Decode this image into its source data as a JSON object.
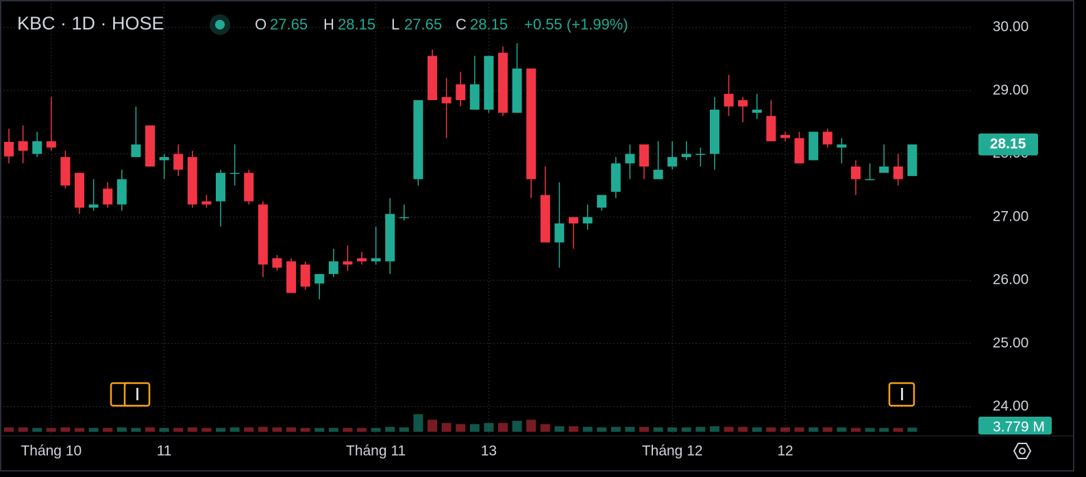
{
  "chart_data": {
    "type": "candlestick",
    "title": "KBC · 1D · HOSE",
    "ohlc_labels": [
      "O",
      "H",
      "L",
      "C"
    ],
    "change_label": "+0.55 (+1.99%)",
    "volume_label": "3.779 M",
    "up_color": "#22ab94",
    "down_color": "#f23645",
    "grid": true,
    "categories": [
      null,
      null,
      null,
      "Tháng 10",
      null,
      null,
      null,
      null,
      null,
      null,
      null,
      "11",
      null,
      null,
      null,
      null,
      null,
      null,
      null,
      null,
      null,
      null,
      null,
      null,
      null,
      null,
      "Tháng 11",
      null,
      null,
      null,
      null,
      null,
      null,
      null,
      "13",
      null,
      null,
      null,
      null,
      null,
      null,
      null,
      null,
      null,
      null,
      null,
      null,
      "Tháng 12",
      null,
      null,
      null,
      null,
      null,
      null,
      null,
      "12",
      null,
      null,
      null,
      null,
      null,
      null,
      null,
      null,
      null
    ],
    "open": [
      28.19,
      28.2,
      28.0,
      28.2,
      27.95,
      27.7,
      27.15,
      27.45,
      27.2,
      27.95,
      28.45,
      27.9,
      28.0,
      27.95,
      27.25,
      27.25,
      27.7,
      27.7,
      27.2,
      26.35,
      26.3,
      26.25,
      25.95,
      26.1,
      26.3,
      26.35,
      26.3,
      26.3,
      27.0,
      27.6,
      29.55,
      28.9,
      29.1,
      28.7,
      28.7,
      29.6,
      28.65,
      29.35,
      27.35,
      26.6,
      27.0,
      26.9,
      27.15,
      27.4,
      27.85,
      28.15,
      27.6,
      27.8,
      27.95,
      28.0,
      28.0,
      28.95,
      28.85,
      28.65,
      28.6,
      28.3,
      28.25,
      27.9,
      28.35,
      28.1,
      27.8,
      27.6,
      27.7,
      27.8,
      27.65
    ],
    "high": [
      28.4,
      28.45,
      28.35,
      28.9,
      28.05,
      27.7,
      27.6,
      27.55,
      27.75,
      28.75,
      28.45,
      28.0,
      28.15,
      28.05,
      27.35,
      27.75,
      28.15,
      27.75,
      27.25,
      26.4,
      26.35,
      26.3,
      26.1,
      26.5,
      26.55,
      26.45,
      26.85,
      27.3,
      27.2,
      28.85,
      29.65,
      29.2,
      29.3,
      29.55,
      29.55,
      29.7,
      29.75,
      29.35,
      27.8,
      27.55,
      27.0,
      27.2,
      27.35,
      27.95,
      28.15,
      28.15,
      28.2,
      28.2,
      28.2,
      28.1,
      28.9,
      29.25,
      28.9,
      28.95,
      28.85,
      28.35,
      28.35,
      28.35,
      28.4,
      28.25,
      27.9,
      27.85,
      28.15,
      28.0,
      28.15
    ],
    "low": [
      27.85,
      27.85,
      27.95,
      28.05,
      27.45,
      27.05,
      27.1,
      27.15,
      27.1,
      27.95,
      27.8,
      27.6,
      27.65,
      27.15,
      27.15,
      26.85,
      27.5,
      27.2,
      26.05,
      26.15,
      25.8,
      25.85,
      25.7,
      26.05,
      26.15,
      26.25,
      26.25,
      26.1,
      26.95,
      27.5,
      28.85,
      28.25,
      28.75,
      28.7,
      28.65,
      28.6,
      28.65,
      27.3,
      26.6,
      26.2,
      26.5,
      26.8,
      27.1,
      27.3,
      27.6,
      27.6,
      27.6,
      27.75,
      27.9,
      27.8,
      27.75,
      28.6,
      28.5,
      28.55,
      28.2,
      28.2,
      27.85,
      27.9,
      28.1,
      27.85,
      27.35,
      27.6,
      27.7,
      27.5,
      27.65
    ],
    "close": [
      27.96,
      28.05,
      28.2,
      28.1,
      27.5,
      27.15,
      27.2,
      27.2,
      27.6,
      28.15,
      27.8,
      27.95,
      27.75,
      27.2,
      27.2,
      27.7,
      27.7,
      27.25,
      26.25,
      26.2,
      25.8,
      25.9,
      26.1,
      26.3,
      26.25,
      26.3,
      26.35,
      27.05,
      27.0,
      28.85,
      28.85,
      28.8,
      28.85,
      29.1,
      29.55,
      28.65,
      29.35,
      27.6,
      26.6,
      26.9,
      26.9,
      27.0,
      27.35,
      27.85,
      28.0,
      27.8,
      27.75,
      27.95,
      28.0,
      28.0,
      28.7,
      28.75,
      28.75,
      28.7,
      28.2,
      28.25,
      27.85,
      28.35,
      28.15,
      28.15,
      27.6,
      27.6,
      27.8,
      27.6,
      28.15
    ],
    "volume": [
      4,
      4,
      3.5,
      3.5,
      4,
      3.5,
      3.5,
      3.5,
      4,
      3.5,
      4,
      3.5,
      3.5,
      4,
      3.5,
      3.5,
      4,
      4,
      4.5,
      4,
      4,
      3.5,
      3.5,
      3.5,
      3.5,
      3.5,
      3.5,
      4.5,
      4,
      16,
      11,
      8,
      7,
      7,
      8,
      8,
      10,
      11,
      7,
      5,
      5,
      4.5,
      4,
      4.5,
      4.5,
      4.5,
      4,
      4,
      4,
      4.5,
      5,
      4.5,
      4.5,
      4,
      4,
      4,
      4,
      4,
      4,
      4,
      3.5,
      3.5,
      3.5,
      3.5,
      3.779
    ],
    "ylim": [
      23.93,
      30.38
    ],
    "yticks": [
      {
        "value": 24,
        "label": "24.00"
      },
      {
        "value": 25,
        "label": "25.00"
      },
      {
        "value": 26,
        "label": "26.00"
      },
      {
        "value": 27,
        "label": "27.00"
      },
      {
        "value": 28,
        "label": "28.00"
      },
      {
        "value": 29,
        "label": "29.00"
      },
      {
        "value": 30,
        "label": "30.00"
      }
    ],
    "volume_ylim": [
      0,
      20
    ]
  }
}
